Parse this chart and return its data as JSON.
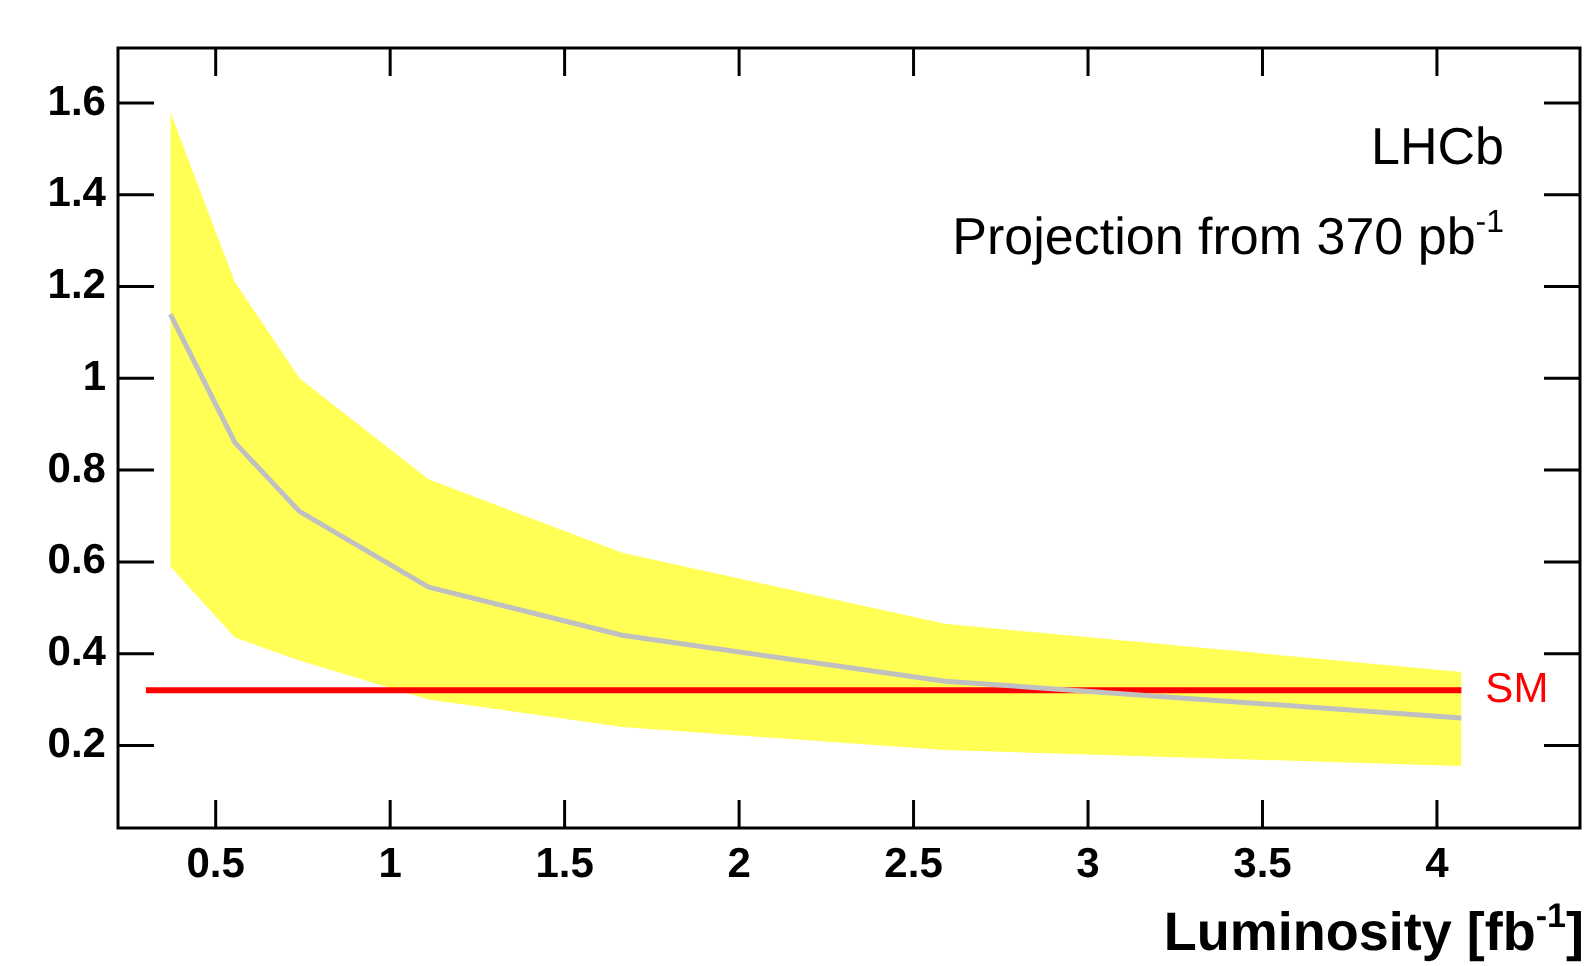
{
  "chart_data": {
    "type": "line",
    "xlabel": "Luminosity [fb$^{-1}$]",
    "annotations": [
      "LHCb",
      "Projection from 370 pb$^{-1}$"
    ],
    "series": [
      {
        "color": "#c0c0c0",
        "x": [
          0.37,
          0.555,
          0.74,
          1.11,
          1.665,
          2.59,
          4.07
        ],
        "values": [
          1.14,
          0.86,
          0.71,
          0.545,
          0.44,
          0.34,
          0.26
        ],
        "lower": [
          0.59,
          0.435,
          0.385,
          0.3,
          0.24,
          0.19,
          0.155
        ],
        "upper": [
          1.58,
          1.21,
          1.0,
          0.78,
          0.62,
          0.465,
          0.36
        ]
      },
      {
        "name": "SM",
        "color": "#ff0000",
        "x": [
          0.3,
          4.07
        ],
        "values": [
          0.32,
          0.32
        ]
      }
    ],
    "xlim": [
      0.22,
      4.41
    ],
    "xticks": [
      0.5,
      1,
      1.5,
      2,
      2.5,
      3,
      3.5,
      4
    ],
    "ylim": [
      0.02,
      1.72
    ],
    "yticks": [
      0.2,
      0.4,
      0.6,
      0.8,
      1,
      1.2,
      1.4,
      1.6
    ],
    "grid": false,
    "legend": false,
    "marker": "none",
    "line_style": "solid"
  }
}
